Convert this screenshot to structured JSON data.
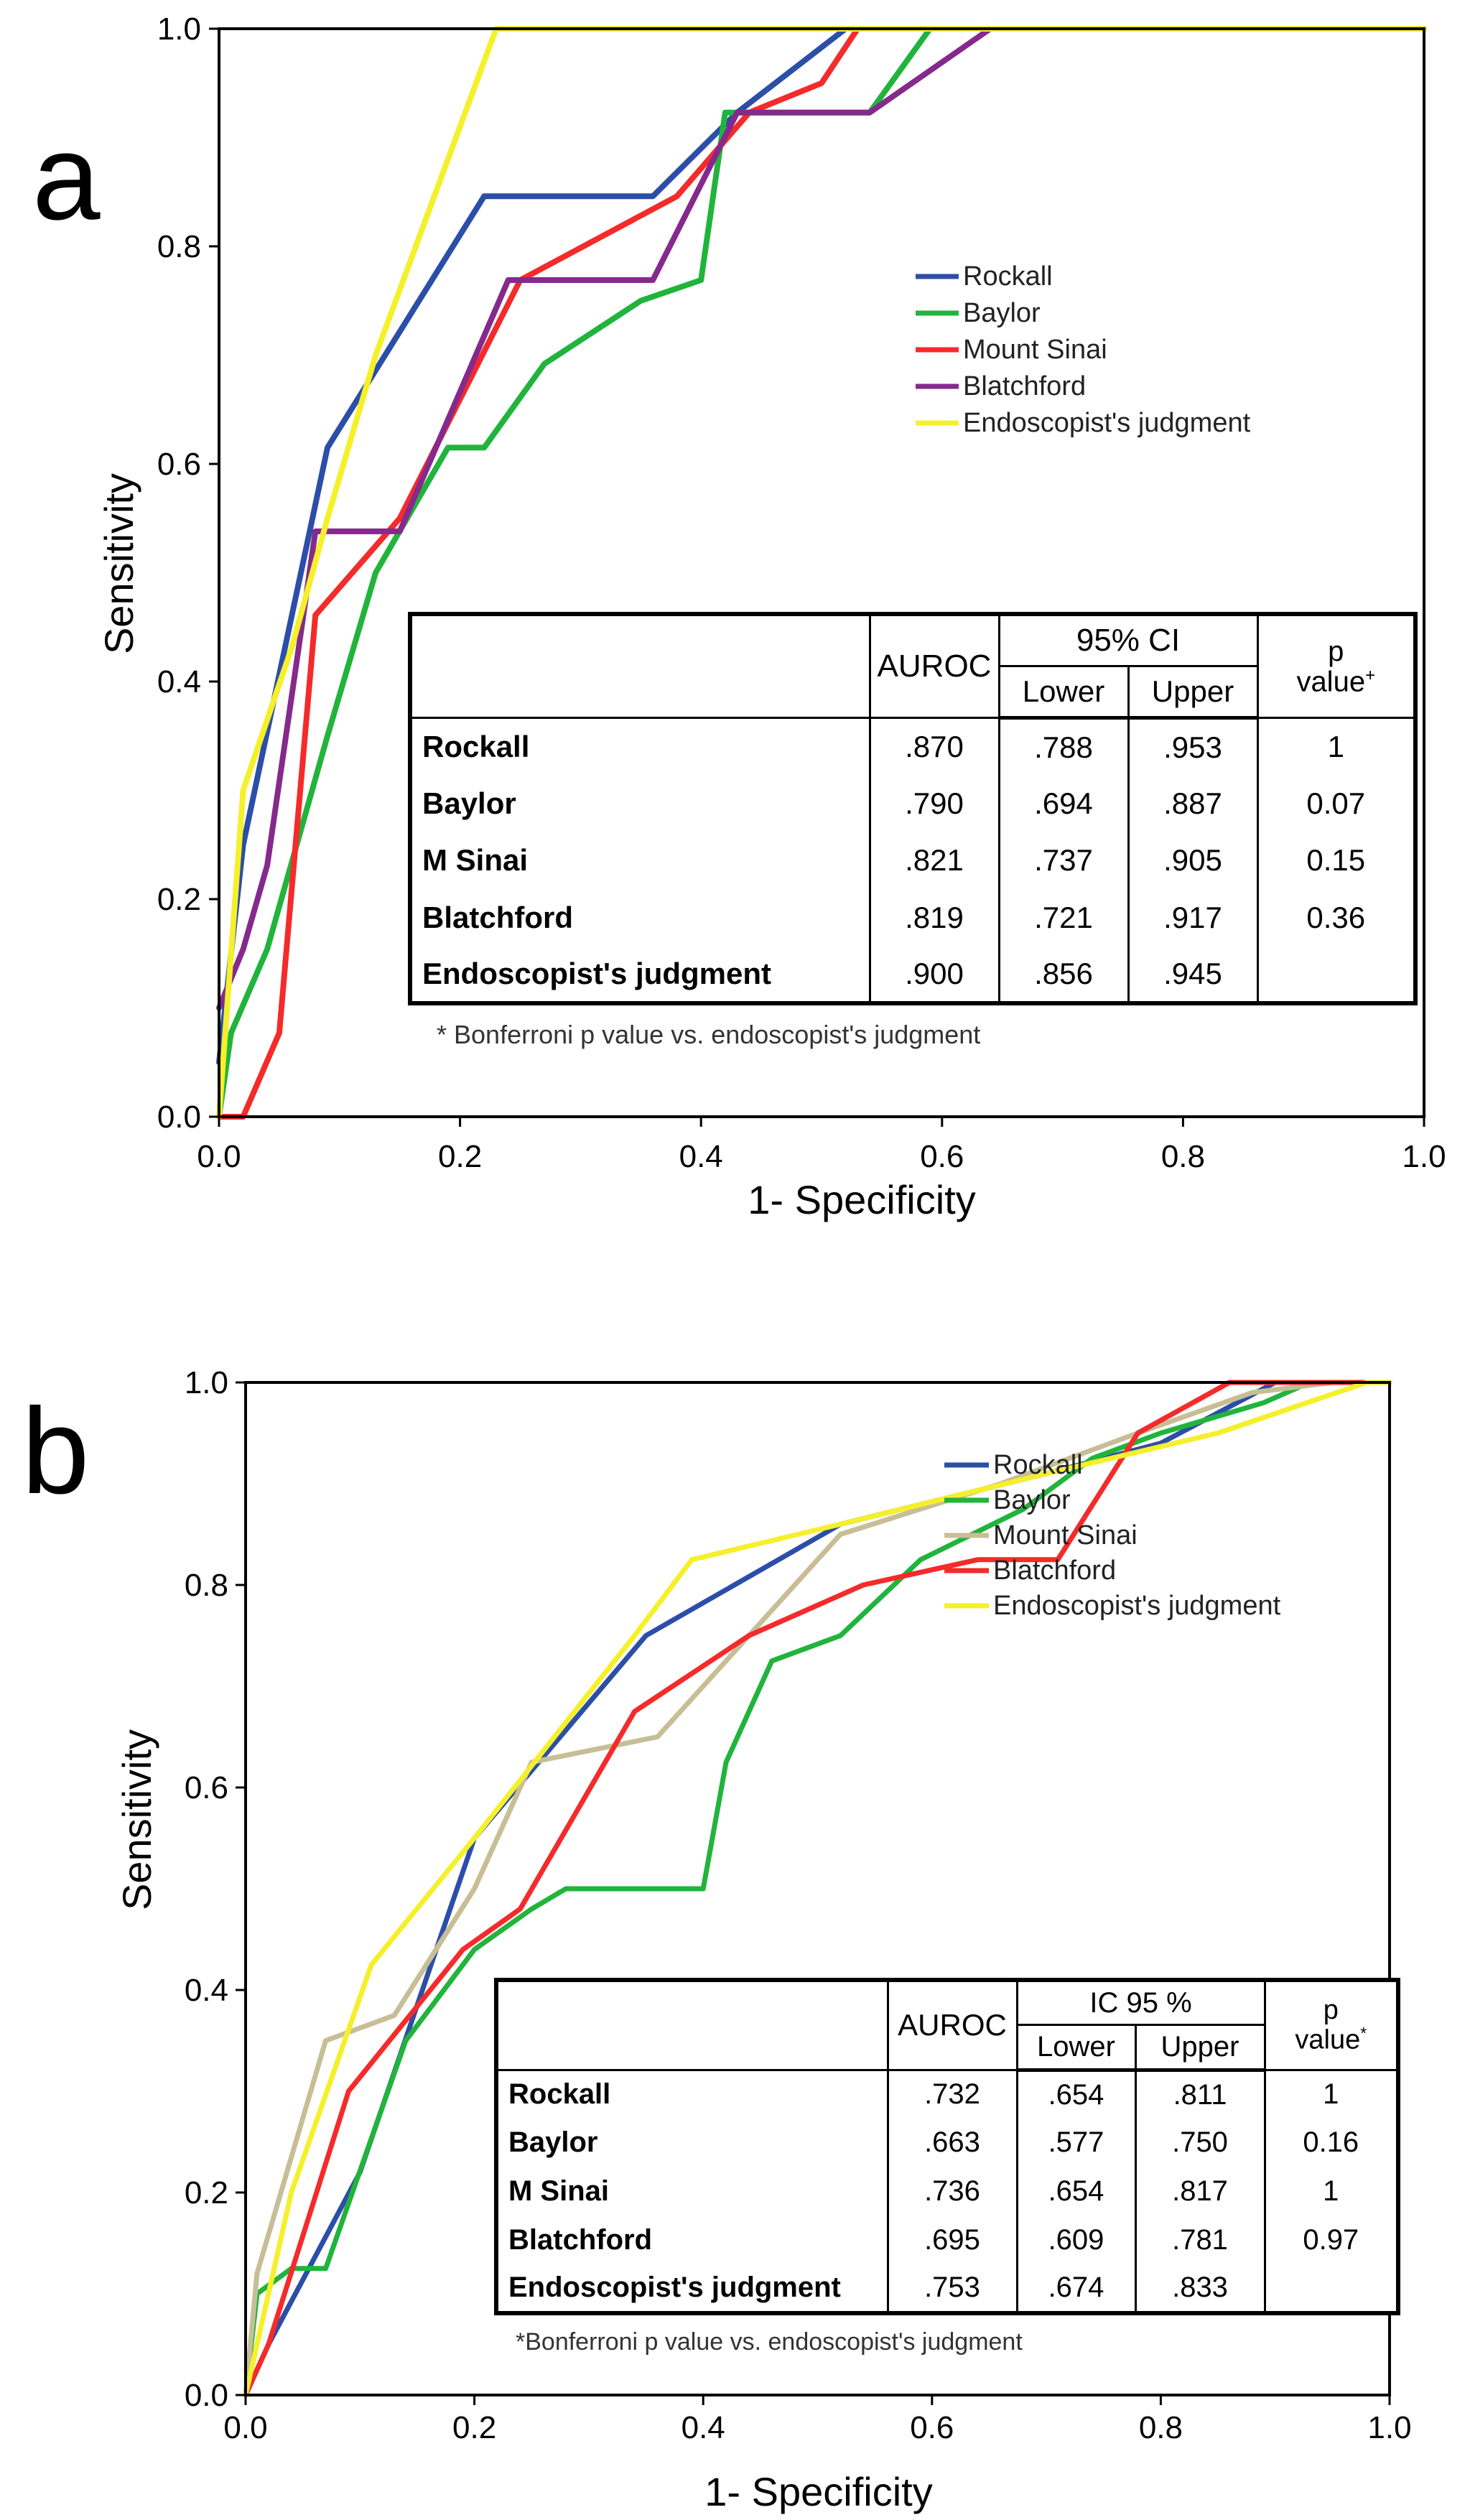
{
  "chart_data": [
    {
      "type": "line",
      "panel_label": "a",
      "xlabel": "1- Specificity",
      "ylabel": "Sensitivity",
      "xlim": [
        0,
        1
      ],
      "ylim": [
        0,
        1
      ],
      "x_ticks": [
        "0.0",
        "0.2",
        "0.4",
        "0.6",
        "0.8",
        "1.0"
      ],
      "y_ticks": [
        "0.0",
        "0.2",
        "0.4",
        "0.6",
        "0.8",
        "1.0"
      ],
      "legend_position": "right-center",
      "series": [
        {
          "name": "Rockall",
          "color": "#2b4ea8",
          "points": [
            [
              0,
              0.05
            ],
            [
              0.02,
              0.25
            ],
            [
              0.09,
              0.615
            ],
            [
              0.22,
              0.846
            ],
            [
              0.36,
              0.846
            ],
            [
              0.43,
              0.923
            ],
            [
              0.52,
              1.0
            ],
            [
              1.0,
              1.0
            ]
          ]
        },
        {
          "name": "Baylor",
          "color": "#21b43c",
          "points": [
            [
              0,
              0
            ],
            [
              0.01,
              0.077
            ],
            [
              0.04,
              0.154
            ],
            [
              0.09,
              0.35
            ],
            [
              0.13,
              0.5
            ],
            [
              0.19,
              0.615
            ],
            [
              0.22,
              0.615
            ],
            [
              0.27,
              0.692
            ],
            [
              0.35,
              0.75
            ],
            [
              0.4,
              0.769
            ],
            [
              0.42,
              0.923
            ],
            [
              0.54,
              0.923
            ],
            [
              0.59,
              1.0
            ],
            [
              1.0,
              1.0
            ]
          ]
        },
        {
          "name": "Mount Sinai",
          "color": "#f52a2a",
          "points": [
            [
              0,
              0
            ],
            [
              0.02,
              0
            ],
            [
              0.05,
              0.077
            ],
            [
              0.08,
              0.461
            ],
            [
              0.15,
              0.55
            ],
            [
              0.25,
              0.769
            ],
            [
              0.38,
              0.846
            ],
            [
              0.44,
              0.923
            ],
            [
              0.5,
              0.95
            ],
            [
              0.53,
              1.0
            ],
            [
              1.0,
              1.0
            ]
          ]
        },
        {
          "name": "Blatchford",
          "color": "#852a8c",
          "points": [
            [
              0,
              0.1
            ],
            [
              0.02,
              0.154
            ],
            [
              0.04,
              0.231
            ],
            [
              0.07,
              0.461
            ],
            [
              0.08,
              0.538
            ],
            [
              0.15,
              0.538
            ],
            [
              0.24,
              0.769
            ],
            [
              0.36,
              0.769
            ],
            [
              0.43,
              0.923
            ],
            [
              0.54,
              0.923
            ],
            [
              0.64,
              1.0
            ],
            [
              1.0,
              1.0
            ]
          ]
        },
        {
          "name": "Endoscopist's judgment",
          "color": "#f5f02a",
          "points": [
            [
              0,
              0
            ],
            [
              0.02,
              0.3
            ],
            [
              0.06,
              0.43
            ],
            [
              0.09,
              0.55
            ],
            [
              0.13,
              0.7
            ],
            [
              0.23,
              1.0
            ],
            [
              1.0,
              1.0
            ]
          ]
        }
      ],
      "table": {
        "col_auroc": "AUROC",
        "col_ci": "95% CI",
        "col_lower": "Lower",
        "col_upper": "Upper",
        "col_p_line1": "p",
        "col_p_line2": "value",
        "col_p_sup": "+",
        "rows": [
          {
            "name": "Rockall",
            "auroc": ".870",
            "lower": ".788",
            "upper": ".953",
            "p": "1"
          },
          {
            "name": "Baylor",
            "auroc": ".790",
            "lower": ".694",
            "upper": ".887",
            "p": "0.07"
          },
          {
            "name": "M Sinai",
            "auroc": ".821",
            "lower": ".737",
            "upper": ".905",
            "p": "0.15"
          },
          {
            "name": "Blatchford",
            "auroc": ".819",
            "lower": ".721",
            "upper": ".917",
            "p": "0.36"
          },
          {
            "name": "Endoscopist's judgment",
            "auroc": ".900",
            "lower": ".856",
            "upper": ".945",
            "p": ""
          }
        ],
        "footnote": "* Bonferroni p value vs. endoscopist's judgment"
      }
    },
    {
      "type": "line",
      "panel_label": "b",
      "xlabel": "1- Specificity",
      "ylabel": "Sensitivity",
      "xlim": [
        0,
        1
      ],
      "ylim": [
        0,
        1
      ],
      "x_ticks": [
        "0.0",
        "0.2",
        "0.4",
        "0.6",
        "0.8",
        "1.0"
      ],
      "y_ticks": [
        "0.0",
        "0.2",
        "0.4",
        "0.6",
        "0.8",
        "1.0"
      ],
      "legend_position": "right-center",
      "series": [
        {
          "name": "Rockall",
          "color": "#2b4ea8",
          "points": [
            [
              0,
              0
            ],
            [
              0.02,
              0.05
            ],
            [
              0.1,
              0.22
            ],
            [
              0.2,
              0.55
            ],
            [
              0.35,
              0.75
            ],
            [
              0.52,
              0.86
            ],
            [
              0.7,
              0.91
            ],
            [
              0.8,
              0.94
            ],
            [
              0.9,
              1.0
            ],
            [
              1.0,
              1.0
            ]
          ]
        },
        {
          "name": "Baylor",
          "color": "#21b43c",
          "points": [
            [
              0,
              0
            ],
            [
              0.01,
              0.1
            ],
            [
              0.04,
              0.125
            ],
            [
              0.07,
              0.125
            ],
            [
              0.14,
              0.35
            ],
            [
              0.2,
              0.44
            ],
            [
              0.25,
              0.48
            ],
            [
              0.28,
              0.5
            ],
            [
              0.4,
              0.5
            ],
            [
              0.42,
              0.625
            ],
            [
              0.46,
              0.725
            ],
            [
              0.52,
              0.75
            ],
            [
              0.59,
              0.825
            ],
            [
              0.68,
              0.875
            ],
            [
              0.74,
              0.925
            ],
            [
              0.8,
              0.95
            ],
            [
              0.89,
              0.98
            ],
            [
              0.93,
              1.0
            ],
            [
              1.0,
              1.0
            ]
          ]
        },
        {
          "name": "Mount Sinai",
          "color": "#c8be96",
          "points": [
            [
              0,
              0
            ],
            [
              0.01,
              0.12
            ],
            [
              0.07,
              0.35
            ],
            [
              0.13,
              0.375
            ],
            [
              0.2,
              0.5
            ],
            [
              0.25,
              0.625
            ],
            [
              0.36,
              0.65
            ],
            [
              0.52,
              0.85
            ],
            [
              0.66,
              0.9
            ],
            [
              0.78,
              0.95
            ],
            [
              0.88,
              0.99
            ],
            [
              0.95,
              1.0
            ],
            [
              1.0,
              1.0
            ]
          ]
        },
        {
          "name": "Blatchford",
          "color": "#f52a2a",
          "points": [
            [
              0,
              0
            ],
            [
              0.02,
              0.05
            ],
            [
              0.09,
              0.3
            ],
            [
              0.19,
              0.44
            ],
            [
              0.24,
              0.48
            ],
            [
              0.34,
              0.675
            ],
            [
              0.44,
              0.75
            ],
            [
              0.54,
              0.8
            ],
            [
              0.64,
              0.825
            ],
            [
              0.71,
              0.825
            ],
            [
              0.78,
              0.95
            ],
            [
              0.86,
              1.0
            ],
            [
              1.0,
              1.0
            ]
          ]
        },
        {
          "name": "Endoscopist's judgment",
          "color": "#f5f02a",
          "points": [
            [
              0,
              0
            ],
            [
              0.04,
              0.2
            ],
            [
              0.11,
              0.425
            ],
            [
              0.2,
              0.55
            ],
            [
              0.34,
              0.75
            ],
            [
              0.39,
              0.825
            ],
            [
              0.52,
              0.86
            ],
            [
              0.7,
              0.91
            ],
            [
              0.85,
              0.95
            ],
            [
              0.98,
              1.0
            ],
            [
              1.0,
              1.0
            ]
          ]
        }
      ],
      "table": {
        "col_auroc": "AUROC",
        "col_ci": "IC 95 %",
        "col_lower": "Lower",
        "col_upper": "Upper",
        "col_p_line1": "p",
        "col_p_line2": "value",
        "col_p_sup": "*",
        "rows": [
          {
            "name": "Rockall",
            "auroc": ".732",
            "lower": ".654",
            "upper": ".811",
            "p": "1"
          },
          {
            "name": "Baylor",
            "auroc": ".663",
            "lower": ".577",
            "upper": ".750",
            "p": "0.16"
          },
          {
            "name": "M Sinai",
            "auroc": ".736",
            "lower": ".654",
            "upper": ".817",
            "p": "1"
          },
          {
            "name": "Blatchford",
            "auroc": ".695",
            "lower": ".609",
            "upper": ".781",
            "p": "0.97"
          },
          {
            "name": "Endoscopist's judgment",
            "auroc": ".753",
            "lower": ".674",
            "upper": ".833",
            "p": ""
          }
        ],
        "footnote": "*Bonferroni p value vs. endoscopist's judgment"
      }
    }
  ]
}
